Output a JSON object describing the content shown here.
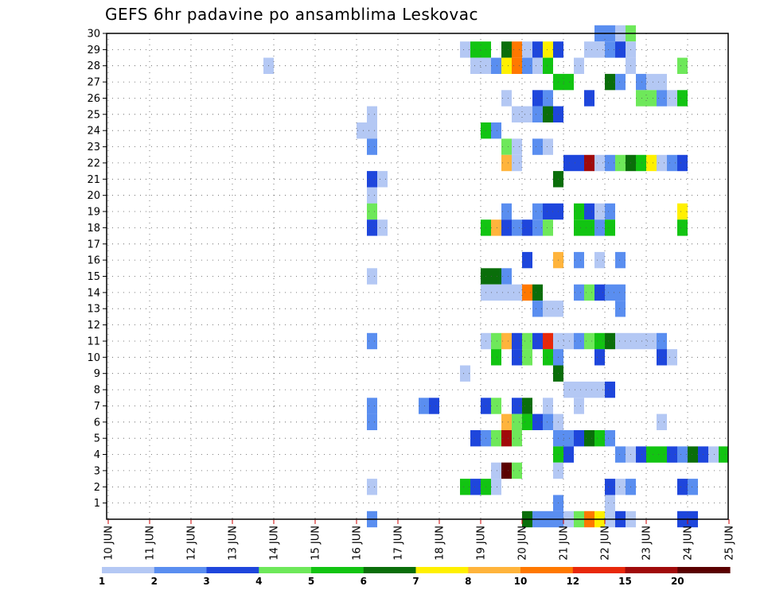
{
  "chart_data": {
    "type": "heatmap",
    "title": "GEFS 6hr padavine po ansamblima Leskovac",
    "xlabel": "",
    "ylabel": "",
    "x_tick_labels": [
      "10 JUN",
      "11 JUN",
      "12 JUN",
      "13 JUN",
      "14 JUN",
      "15 JUN",
      "16 JUN",
      "17 JUN",
      "18 JUN",
      "19 JUN",
      "20 JUN",
      "21 JUN",
      "22 JUN",
      "23 JUN",
      "24 JUN",
      "25 JUN"
    ],
    "y_tick_labels": [
      "1",
      "2",
      "3",
      "4",
      "5",
      "6",
      "7",
      "8",
      "9",
      "10",
      "11",
      "12",
      "13",
      "14",
      "15",
      "16",
      "17",
      "18",
      "19",
      "20",
      "21",
      "22",
      "23",
      "24",
      "25",
      "26",
      "27",
      "28",
      "29",
      "30"
    ],
    "x_unit": "6-hour step from 10 JUN 00Z",
    "y_range": [
      0,
      30
    ],
    "x_range": [
      0,
      60
    ],
    "grid": true,
    "legend_placement": "bottom",
    "legend": {
      "labels": [
        "1",
        "2",
        "3",
        "4",
        "5",
        "6",
        "7",
        "8",
        "10",
        "12",
        "15",
        "20"
      ],
      "colors": [
        "#b4c8f4",
        "#5a8ef0",
        "#1e46dc",
        "#6ee85a",
        "#12c412",
        "#0a6e0a",
        "#fff000",
        "#ffb43c",
        "#ff7800",
        "#e8280a",
        "#a00a0a",
        "#5a0000"
      ]
    },
    "cells": [
      [
        27,
        30,
        "#5a8ef0"
      ],
      [
        28,
        30,
        "#5a8ef0"
      ],
      [
        29,
        30,
        "#b4c8f4"
      ],
      [
        30,
        30,
        "#6ee85a"
      ],
      [
        14,
        29,
        "#b4c8f4"
      ],
      [
        15,
        29,
        "#12c412"
      ],
      [
        16,
        29,
        "#12c412"
      ],
      [
        18,
        29,
        "#0a6e0a"
      ],
      [
        19,
        29,
        "#ff7800"
      ],
      [
        20,
        29,
        "#b4c8f4"
      ],
      [
        21,
        29,
        "#1e46dc"
      ],
      [
        22,
        29,
        "#fff000"
      ],
      [
        23,
        29,
        "#1e46dc"
      ],
      [
        26,
        29,
        "#b4c8f4"
      ],
      [
        27,
        29,
        "#b4c8f4"
      ],
      [
        28,
        29,
        "#5a8ef0"
      ],
      [
        29,
        29,
        "#1e46dc"
      ],
      [
        30,
        29,
        "#b4c8f4"
      ],
      [
        -5,
        28,
        "#b4c8f4"
      ],
      [
        15,
        28,
        "#b4c8f4"
      ],
      [
        16,
        28,
        "#b4c8f4"
      ],
      [
        17,
        28,
        "#5a8ef0"
      ],
      [
        18,
        28,
        "#fff000"
      ],
      [
        19,
        28,
        "#ff7800"
      ],
      [
        20,
        28,
        "#5a8ef0"
      ],
      [
        21,
        28,
        "#b4c8f4"
      ],
      [
        22,
        28,
        "#12c412"
      ],
      [
        25,
        28,
        "#b4c8f4"
      ],
      [
        30,
        28,
        "#b4c8f4"
      ],
      [
        35,
        28,
        "#6ee85a"
      ],
      [
        23,
        27,
        "#12c412"
      ],
      [
        24,
        27,
        "#12c412"
      ],
      [
        28,
        27,
        "#0a6e0a"
      ],
      [
        29,
        27,
        "#5a8ef0"
      ],
      [
        31,
        27,
        "#5a8ef0"
      ],
      [
        32,
        27,
        "#b4c8f4"
      ],
      [
        33,
        27,
        "#b4c8f4"
      ],
      [
        18,
        26,
        "#b4c8f4"
      ],
      [
        21,
        26,
        "#1e46dc"
      ],
      [
        22,
        26,
        "#5a8ef0"
      ],
      [
        26,
        26,
        "#1e46dc"
      ],
      [
        31,
        26,
        "#6ee85a"
      ],
      [
        32,
        26,
        "#6ee85a"
      ],
      [
        33,
        26,
        "#5a8ef0"
      ],
      [
        34,
        26,
        "#b4c8f4"
      ],
      [
        35,
        26,
        "#12c412"
      ],
      [
        5,
        25,
        "#b4c8f4"
      ],
      [
        19,
        25,
        "#b4c8f4"
      ],
      [
        20,
        25,
        "#b4c8f4"
      ],
      [
        21,
        25,
        "#5a8ef0"
      ],
      [
        22,
        25,
        "#0a6e0a"
      ],
      [
        23,
        25,
        "#1e46dc"
      ],
      [
        4,
        24,
        "#b4c8f4"
      ],
      [
        5,
        24,
        "#b4c8f4"
      ],
      [
        16,
        24,
        "#12c412"
      ],
      [
        17,
        24,
        "#5a8ef0"
      ],
      [
        5,
        23,
        "#5a8ef0"
      ],
      [
        18,
        23,
        "#6ee85a"
      ],
      [
        19,
        23,
        "#b4c8f4"
      ],
      [
        21,
        23,
        "#5a8ef0"
      ],
      [
        22,
        23,
        "#b4c8f4"
      ],
      [
        18,
        22,
        "#ffb43c"
      ],
      [
        19,
        22,
        "#b4c8f4"
      ],
      [
        24,
        22,
        "#1e46dc"
      ],
      [
        25,
        22,
        "#1e46dc"
      ],
      [
        26,
        22,
        "#a00a0a"
      ],
      [
        27,
        22,
        "#b4c8f4"
      ],
      [
        28,
        22,
        "#5a8ef0"
      ],
      [
        29,
        22,
        "#6ee85a"
      ],
      [
        30,
        22,
        "#0a6e0a"
      ],
      [
        31,
        22,
        "#12c412"
      ],
      [
        32,
        22,
        "#fff000"
      ],
      [
        33,
        22,
        "#b4c8f4"
      ],
      [
        34,
        22,
        "#5a8ef0"
      ],
      [
        35,
        22,
        "#1e46dc"
      ],
      [
        5,
        21,
        "#1e46dc"
      ],
      [
        6,
        21,
        "#b4c8f4"
      ],
      [
        23,
        21,
        "#0a6e0a"
      ],
      [
        5,
        20,
        "#b4c8f4"
      ],
      [
        5,
        19,
        "#6ee85a"
      ],
      [
        18,
        19,
        "#5a8ef0"
      ],
      [
        21,
        19,
        "#5a8ef0"
      ],
      [
        22,
        19,
        "#1e46dc"
      ],
      [
        23,
        19,
        "#1e46dc"
      ],
      [
        25,
        19,
        "#12c412"
      ],
      [
        26,
        19,
        "#1e46dc"
      ],
      [
        27,
        19,
        "#b4c8f4"
      ],
      [
        28,
        19,
        "#5a8ef0"
      ],
      [
        35,
        19,
        "#fff000"
      ],
      [
        5,
        18,
        "#1e46dc"
      ],
      [
        6,
        18,
        "#b4c8f4"
      ],
      [
        16,
        18,
        "#12c412"
      ],
      [
        17,
        18,
        "#ffb43c"
      ],
      [
        18,
        18,
        "#1e46dc"
      ],
      [
        19,
        18,
        "#5a8ef0"
      ],
      [
        20,
        18,
        "#1e46dc"
      ],
      [
        21,
        18,
        "#5a8ef0"
      ],
      [
        22,
        18,
        "#6ee85a"
      ],
      [
        25,
        18,
        "#12c412"
      ],
      [
        26,
        18,
        "#12c412"
      ],
      [
        27,
        18,
        "#5a8ef0"
      ],
      [
        28,
        18,
        "#12c412"
      ],
      [
        35,
        18,
        "#12c412"
      ],
      [
        20,
        16,
        "#1e46dc"
      ],
      [
        23,
        16,
        "#ffb43c"
      ],
      [
        25,
        16,
        "#5a8ef0"
      ],
      [
        27,
        16,
        "#b4c8f4"
      ],
      [
        29,
        16,
        "#5a8ef0"
      ],
      [
        5,
        15,
        "#b4c8f4"
      ],
      [
        16,
        15,
        "#0a6e0a"
      ],
      [
        17,
        15,
        "#0a6e0a"
      ],
      [
        18,
        15,
        "#5a8ef0"
      ],
      [
        16,
        14,
        "#b4c8f4"
      ],
      [
        17,
        14,
        "#b4c8f4"
      ],
      [
        18,
        14,
        "#b4c8f4"
      ],
      [
        19,
        14,
        "#b4c8f4"
      ],
      [
        20,
        14,
        "#ff7800"
      ],
      [
        21,
        14,
        "#0a6e0a"
      ],
      [
        25,
        14,
        "#5a8ef0"
      ],
      [
        26,
        14,
        "#6ee85a"
      ],
      [
        27,
        14,
        "#1e46dc"
      ],
      [
        28,
        14,
        "#5a8ef0"
      ],
      [
        29,
        14,
        "#5a8ef0"
      ],
      [
        29,
        13,
        "#5a8ef0"
      ],
      [
        21,
        13,
        "#5a8ef0"
      ],
      [
        22,
        13,
        "#b4c8f4"
      ],
      [
        23,
        13,
        "#b4c8f4"
      ],
      [
        5,
        11,
        "#5a8ef0"
      ],
      [
        16,
        11,
        "#b4c8f4"
      ],
      [
        17,
        11,
        "#6ee85a"
      ],
      [
        18,
        11,
        "#ffb43c"
      ],
      [
        19,
        11,
        "#1e46dc"
      ],
      [
        20,
        11,
        "#6ee85a"
      ],
      [
        21,
        11,
        "#1e46dc"
      ],
      [
        22,
        11,
        "#e8280a"
      ],
      [
        23,
        11,
        "#b4c8f4"
      ],
      [
        24,
        11,
        "#b4c8f4"
      ],
      [
        25,
        11,
        "#5a8ef0"
      ],
      [
        26,
        11,
        "#6ee85a"
      ],
      [
        27,
        11,
        "#12c412"
      ],
      [
        28,
        11,
        "#0a6e0a"
      ],
      [
        29,
        11,
        "#b4c8f4"
      ],
      [
        30,
        11,
        "#b4c8f4"
      ],
      [
        31,
        11,
        "#b4c8f4"
      ],
      [
        32,
        11,
        "#b4c8f4"
      ],
      [
        33,
        11,
        "#5a8ef0"
      ],
      [
        17,
        10,
        "#12c412"
      ],
      [
        19,
        10,
        "#1e46dc"
      ],
      [
        20,
        10,
        "#6ee85a"
      ],
      [
        22,
        10,
        "#12c412"
      ],
      [
        23,
        10,
        "#5a8ef0"
      ],
      [
        27,
        10,
        "#1e46dc"
      ],
      [
        33,
        10,
        "#1e46dc"
      ],
      [
        34,
        10,
        "#b4c8f4"
      ],
      [
        14,
        9,
        "#b4c8f4"
      ],
      [
        23,
        9,
        "#0a6e0a"
      ],
      [
        24,
        8,
        "#b4c8f4"
      ],
      [
        25,
        8,
        "#b4c8f4"
      ],
      [
        26,
        8,
        "#b4c8f4"
      ],
      [
        27,
        8,
        "#b4c8f4"
      ],
      [
        28,
        8,
        "#1e46dc"
      ],
      [
        5,
        7,
        "#5a8ef0"
      ],
      [
        10,
        7,
        "#5a8ef0"
      ],
      [
        11,
        7,
        "#1e46dc"
      ],
      [
        16,
        7,
        "#1e46dc"
      ],
      [
        17,
        7,
        "#6ee85a"
      ],
      [
        19,
        7,
        "#1e46dc"
      ],
      [
        20,
        7,
        "#0a6e0a"
      ],
      [
        22,
        7,
        "#b4c8f4"
      ],
      [
        25,
        7,
        "#b4c8f4"
      ],
      [
        5,
        6,
        "#5a8ef0"
      ],
      [
        18,
        6,
        "#ffb43c"
      ],
      [
        19,
        6,
        "#6ee85a"
      ],
      [
        20,
        6,
        "#12c412"
      ],
      [
        21,
        6,
        "#1e46dc"
      ],
      [
        22,
        6,
        "#5a8ef0"
      ],
      [
        23,
        6,
        "#b4c8f4"
      ],
      [
        33,
        6,
        "#b4c8f4"
      ],
      [
        15,
        5,
        "#1e46dc"
      ],
      [
        16,
        5,
        "#5a8ef0"
      ],
      [
        17,
        5,
        "#6ee85a"
      ],
      [
        18,
        5,
        "#a00a0a"
      ],
      [
        19,
        5,
        "#6ee85a"
      ],
      [
        23,
        5,
        "#5a8ef0"
      ],
      [
        24,
        5,
        "#5a8ef0"
      ],
      [
        25,
        5,
        "#1e46dc"
      ],
      [
        26,
        5,
        "#0a6e0a"
      ],
      [
        27,
        5,
        "#12c412"
      ],
      [
        28,
        5,
        "#5a8ef0"
      ],
      [
        23,
        4,
        "#12c412"
      ],
      [
        24,
        4,
        "#1e46dc"
      ],
      [
        29,
        4,
        "#5a8ef0"
      ],
      [
        30,
        4,
        "#b4c8f4"
      ],
      [
        31,
        4,
        "#1e46dc"
      ],
      [
        32,
        4,
        "#12c412"
      ],
      [
        33,
        4,
        "#12c412"
      ],
      [
        34,
        4,
        "#1e46dc"
      ],
      [
        35,
        4,
        "#5a8ef0"
      ],
      [
        36,
        4,
        "#0a6e0a"
      ],
      [
        37,
        4,
        "#1e46dc"
      ],
      [
        38,
        4,
        "#b4c8f4"
      ],
      [
        39,
        4,
        "#12c412"
      ],
      [
        17,
        3,
        "#b4c8f4"
      ],
      [
        18,
        3,
        "#5a0000"
      ],
      [
        19,
        3,
        "#6ee85a"
      ],
      [
        23,
        3,
        "#b4c8f4"
      ],
      [
        5,
        2,
        "#b4c8f4"
      ],
      [
        14,
        2,
        "#12c412"
      ],
      [
        15,
        2,
        "#1e46dc"
      ],
      [
        16,
        2,
        "#12c412"
      ],
      [
        17,
        2,
        "#b4c8f4"
      ],
      [
        28,
        2,
        "#1e46dc"
      ],
      [
        29,
        2,
        "#b4c8f4"
      ],
      [
        30,
        2,
        "#5a8ef0"
      ],
      [
        35,
        2,
        "#1e46dc"
      ],
      [
        36,
        2,
        "#5a8ef0"
      ],
      [
        23,
        1,
        "#5a8ef0"
      ],
      [
        28,
        1,
        "#b4c8f4"
      ],
      [
        5,
        0,
        "#5a8ef0"
      ],
      [
        20,
        0,
        "#0a6e0a"
      ],
      [
        21,
        0,
        "#5a8ef0"
      ],
      [
        22,
        0,
        "#5a8ef0"
      ],
      [
        23,
        0,
        "#5a8ef0"
      ],
      [
        24,
        0,
        "#b4c8f4"
      ],
      [
        25,
        0,
        "#6ee85a"
      ],
      [
        26,
        0,
        "#ff7800"
      ],
      [
        27,
        0,
        "#fff000"
      ],
      [
        28,
        0,
        "#b4c8f4"
      ],
      [
        29,
        0,
        "#1e46dc"
      ],
      [
        30,
        0,
        "#b4c8f4"
      ],
      [
        35,
        0,
        "#1e46dc"
      ],
      [
        36,
        0,
        "#1e46dc"
      ]
    ]
  }
}
